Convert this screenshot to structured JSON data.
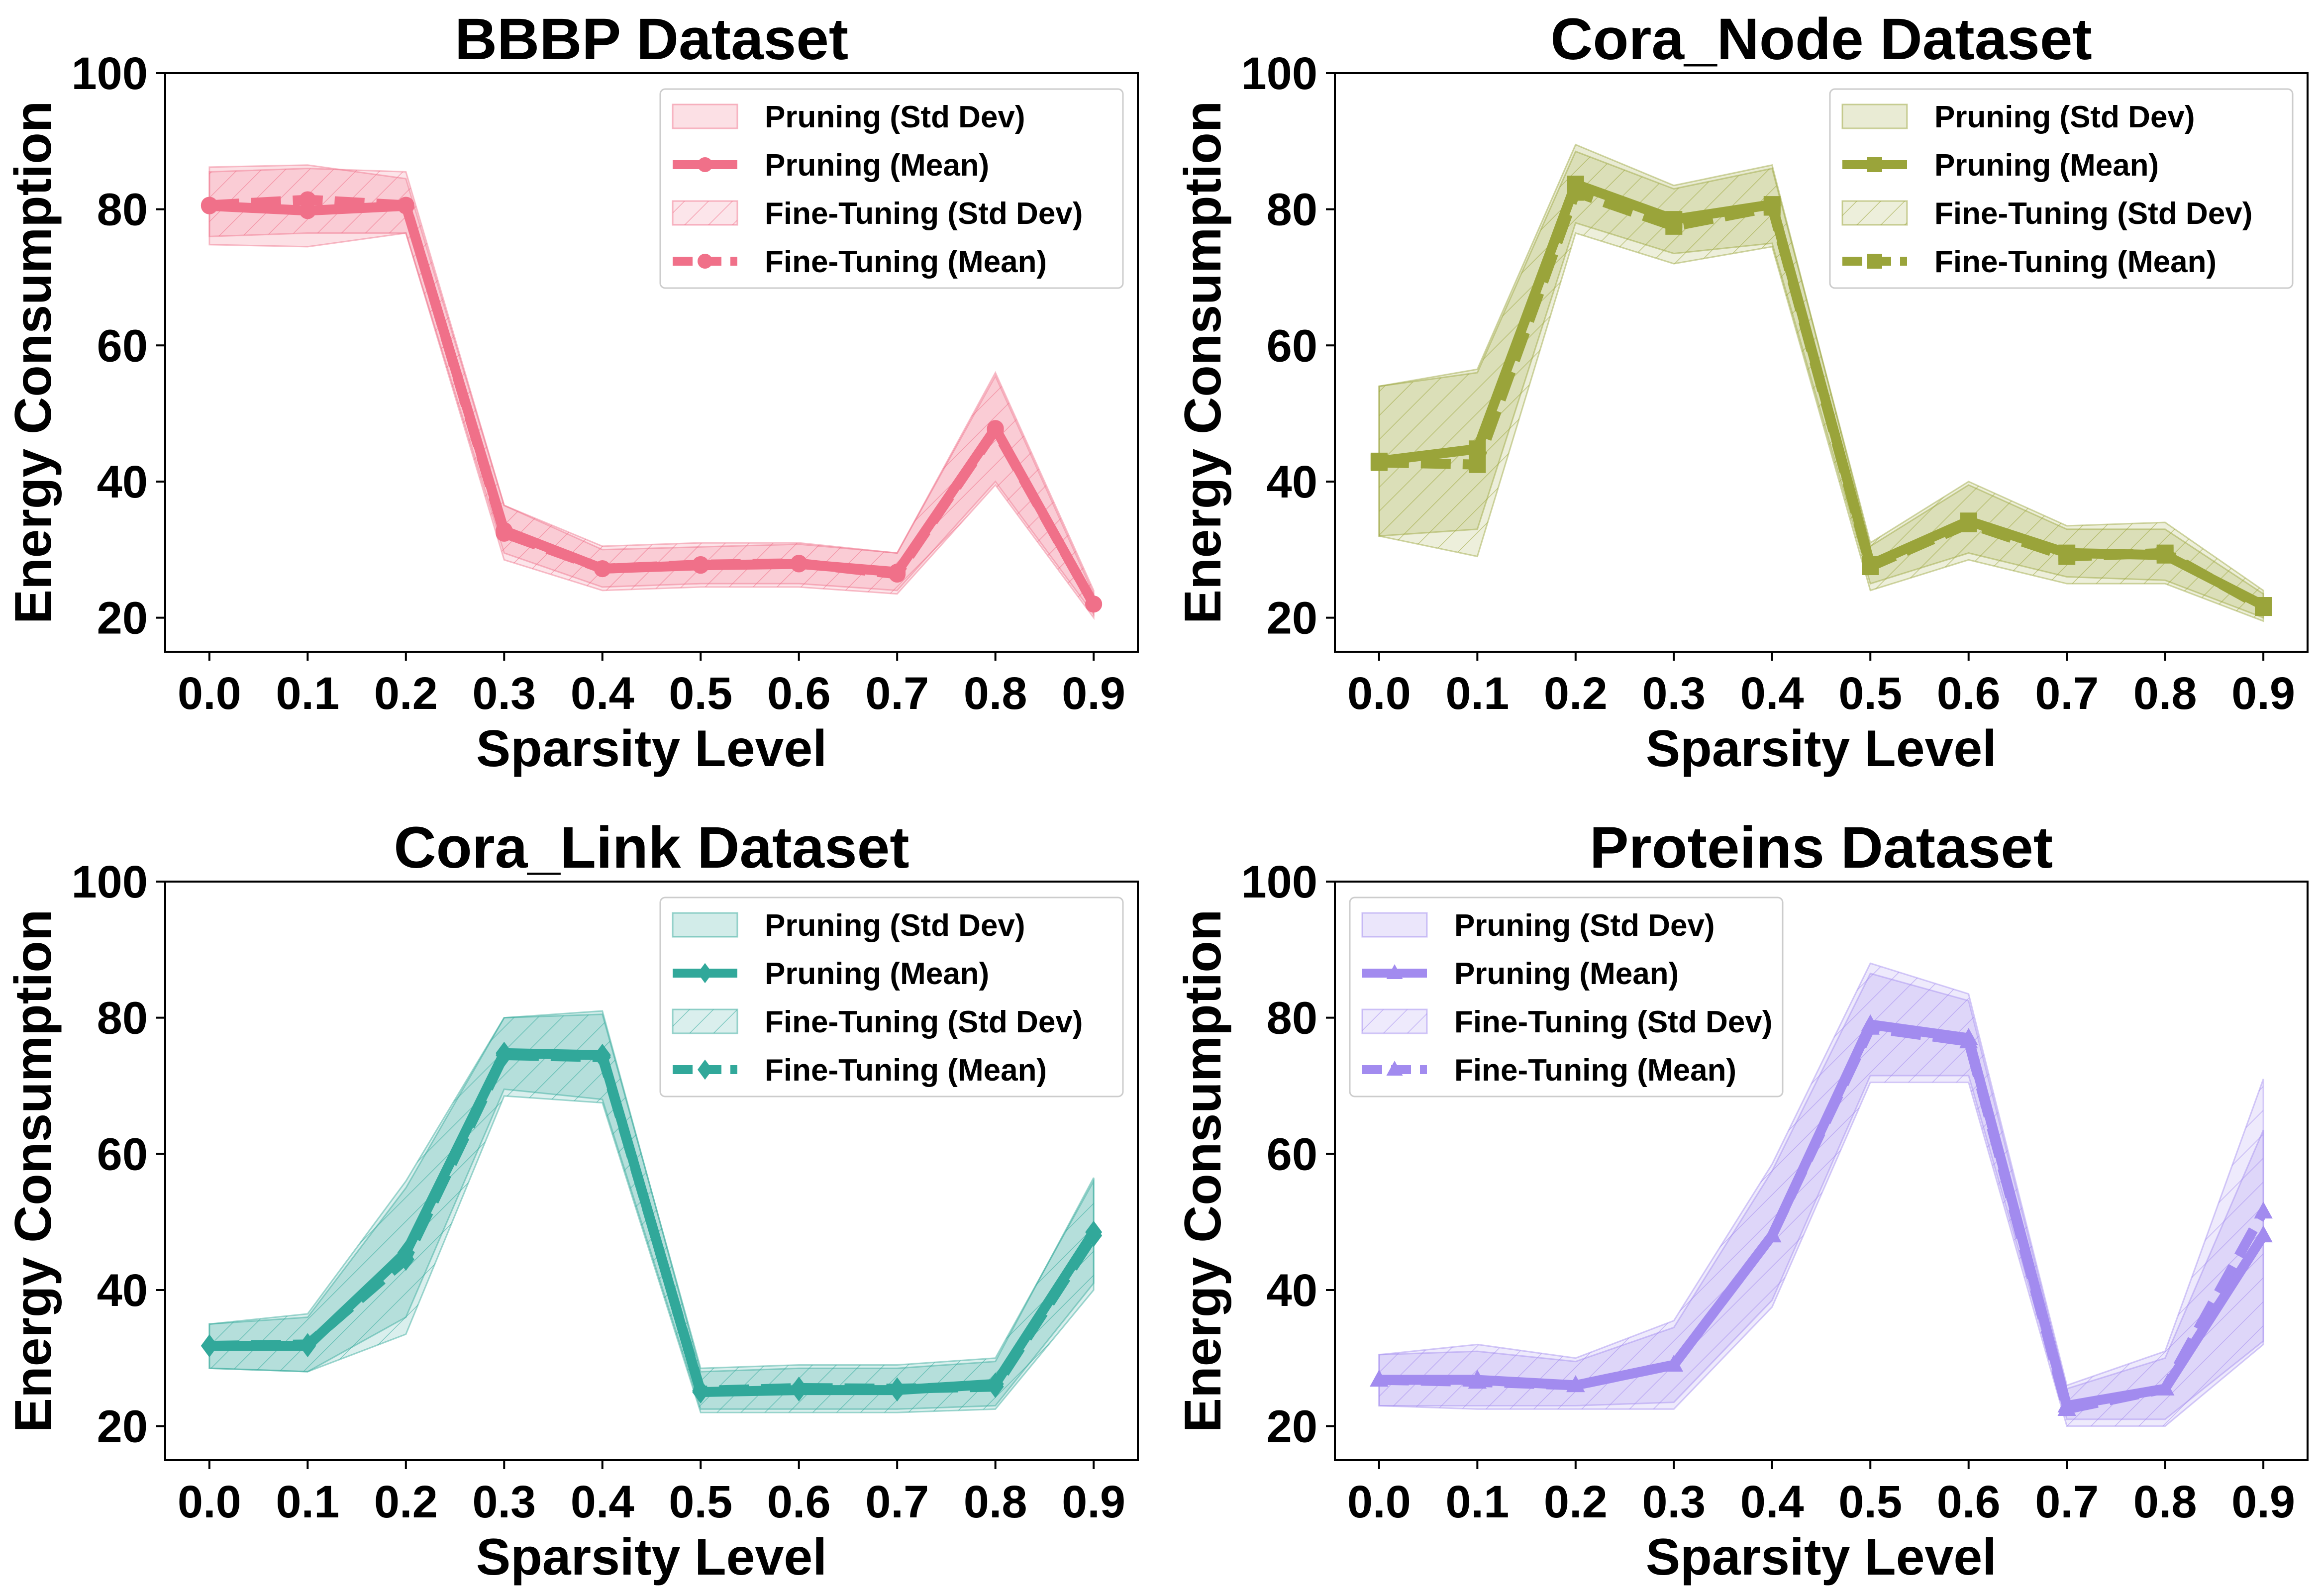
{
  "chart_data": [
    {
      "type": "line",
      "title": "BBBP Dataset",
      "xlabel": "Sparsity Level",
      "ylabel": "Energy Consumption",
      "x": [
        0.0,
        0.1,
        0.2,
        0.3,
        0.4,
        0.5,
        0.6,
        0.7,
        0.8,
        0.9
      ],
      "x_tick_labels": [
        "0.0",
        "0.1",
        "0.2",
        "0.3",
        "0.4",
        "0.5",
        "0.6",
        "0.7",
        "0.8",
        "0.9"
      ],
      "y_ticks": [
        20,
        40,
        60,
        80,
        100
      ],
      "y_tick_labels": [
        "20",
        "40",
        "60",
        "80",
        "100"
      ],
      "xlim": [
        -0.045,
        0.945
      ],
      "ylim": [
        15,
        100
      ],
      "marker": "circle",
      "color": "#F07089",
      "legend_position": "upper right",
      "legend_labels": [
        "Pruning (Std Dev)",
        "Pruning (Mean)",
        "Fine-Tuning (Std Dev)",
        "Fine-Tuning (Mean)"
      ],
      "series": [
        {
          "name": "Pruning (Mean)",
          "style": "solid",
          "values": [
            80.5,
            79.8,
            80.5,
            32.8,
            27.2,
            27.7,
            27.9,
            26.7,
            47.8,
            22.0
          ],
          "std_band": [
            [
              74.8,
              86.2
            ],
            [
              74.5,
              86.5
            ],
            [
              76.5,
              84.5
            ],
            [
              29.5,
              36.5
            ],
            [
              24.5,
              30.0
            ],
            [
              25.0,
              30.4
            ],
            [
              25.0,
              30.8
            ],
            [
              24.0,
              29.5
            ],
            [
              40.0,
              55.5
            ],
            [
              20.5,
              23.5
            ]
          ]
        },
        {
          "name": "Fine-Tuning (Mean)",
          "style": "dashed",
          "values": [
            80.6,
            81.4,
            80.6,
            32.4,
            27.2,
            27.8,
            28.0,
            26.4,
            47.6,
            22.0
          ],
          "std_band": [
            [
              76.0,
              85.5
            ],
            [
              76.5,
              86.0
            ],
            [
              76.5,
              85.5
            ],
            [
              28.5,
              36.5
            ],
            [
              24.0,
              30.5
            ],
            [
              24.5,
              31.0
            ],
            [
              24.5,
              31.0
            ],
            [
              23.5,
              29.5
            ],
            [
              39.5,
              56.0
            ],
            [
              20.0,
              24.0
            ]
          ]
        }
      ]
    },
    {
      "type": "line",
      "title": "Cora_Node Dataset",
      "xlabel": "Sparsity Level",
      "ylabel": "Energy Consumption",
      "x": [
        0.0,
        0.1,
        0.2,
        0.3,
        0.4,
        0.5,
        0.6,
        0.7,
        0.8,
        0.9
      ],
      "x_tick_labels": [
        "0.0",
        "0.1",
        "0.2",
        "0.3",
        "0.4",
        "0.5",
        "0.6",
        "0.7",
        "0.8",
        "0.9"
      ],
      "y_ticks": [
        20,
        40,
        60,
        80,
        100
      ],
      "y_tick_labels": [
        "20",
        "40",
        "60",
        "80",
        "100"
      ],
      "xlim": [
        -0.045,
        0.945
      ],
      "ylim": [
        15,
        100
      ],
      "marker": "square",
      "color": "#9AA43A",
      "legend_position": "upper right",
      "legend_labels": [
        "Pruning (Std Dev)",
        "Pruning (Mean)",
        "Fine-Tuning (Std Dev)",
        "Fine-Tuning (Mean)"
      ],
      "series": [
        {
          "name": "Pruning (Mean)",
          "style": "solid",
          "values": [
            43.0,
            44.8,
            83.7,
            78.5,
            80.7,
            27.8,
            34.2,
            29.5,
            29.2,
            21.8
          ],
          "std_band": [
            [
              32.0,
              54.0
            ],
            [
              33.0,
              56.5
            ],
            [
              78.0,
              89.5
            ],
            [
              73.5,
              83.5
            ],
            [
              75.0,
              86.5
            ],
            [
              25.0,
              30.5
            ],
            [
              29.5,
              39.5
            ],
            [
              26.0,
              33.0
            ],
            [
              25.5,
              33.0
            ],
            [
              20.0,
              23.5
            ]
          ]
        },
        {
          "name": "Fine-Tuning (Mean)",
          "style": "dashed",
          "values": [
            42.8,
            42.5,
            82.5,
            77.5,
            80.3,
            27.5,
            33.8,
            29.0,
            29.5,
            21.5
          ],
          "std_band": [
            [
              32.0,
              54.0
            ],
            [
              29.0,
              56.0
            ],
            [
              76.5,
              88.5
            ],
            [
              72.0,
              83.0
            ],
            [
              74.5,
              86.0
            ],
            [
              24.0,
              31.0
            ],
            [
              28.5,
              40.0
            ],
            [
              25.0,
              33.5
            ],
            [
              25.0,
              34.0
            ],
            [
              19.5,
              24.0
            ]
          ]
        }
      ]
    },
    {
      "type": "line",
      "title": "Cora_Link Dataset",
      "xlabel": "Sparsity Level",
      "ylabel": "Energy Consumption",
      "x": [
        0.0,
        0.1,
        0.2,
        0.3,
        0.4,
        0.5,
        0.6,
        0.7,
        0.8,
        0.9
      ],
      "x_tick_labels": [
        "0.0",
        "0.1",
        "0.2",
        "0.3",
        "0.4",
        "0.5",
        "0.6",
        "0.7",
        "0.8",
        "0.9"
      ],
      "y_ticks": [
        20,
        40,
        60,
        80,
        100
      ],
      "y_tick_labels": [
        "20",
        "40",
        "60",
        "80",
        "100"
      ],
      "xlim": [
        -0.045,
        0.945
      ],
      "ylim": [
        15,
        100
      ],
      "marker": "diamond",
      "color": "#31A89A",
      "legend_position": "upper right",
      "legend_labels": [
        "Pruning (Std Dev)",
        "Pruning (Mean)",
        "Fine-Tuning (Std Dev)",
        "Fine-Tuning (Mean)"
      ],
      "series": [
        {
          "name": "Pruning (Mean)",
          "style": "solid",
          "values": [
            31.8,
            31.8,
            45.5,
            74.8,
            74.5,
            25.0,
            25.3,
            25.3,
            26.2,
            48.5
          ],
          "std_band": [
            [
              28.5,
              35.0
            ],
            [
              28.0,
              36.0
            ],
            [
              36.0,
              55.0
            ],
            [
              69.5,
              80.0
            ],
            [
              68.0,
              81.0
            ],
            [
              22.5,
              28.0
            ],
            [
              22.5,
              28.5
            ],
            [
              22.5,
              28.5
            ],
            [
              23.0,
              29.5
            ],
            [
              41.0,
              56.5
            ]
          ]
        },
        {
          "name": "Fine-Tuning (Mean)",
          "style": "dashed",
          "values": [
            31.8,
            32.0,
            44.5,
            74.5,
            74.2,
            25.2,
            25.6,
            25.5,
            25.8,
            48.0
          ],
          "std_band": [
            [
              28.5,
              35.0
            ],
            [
              28.0,
              36.5
            ],
            [
              33.5,
              56.0
            ],
            [
              68.5,
              80.0
            ],
            [
              67.5,
              80.5
            ],
            [
              22.0,
              28.5
            ],
            [
              22.0,
              29.0
            ],
            [
              22.0,
              29.0
            ],
            [
              22.5,
              30.0
            ],
            [
              40.0,
              56.0
            ]
          ]
        }
      ]
    },
    {
      "type": "line",
      "title": "Proteins Dataset",
      "xlabel": "Sparsity Level",
      "ylabel": "Energy Consumption",
      "x": [
        0.0,
        0.1,
        0.2,
        0.3,
        0.4,
        0.5,
        0.6,
        0.7,
        0.8,
        0.9
      ],
      "x_tick_labels": [
        "0.0",
        "0.1",
        "0.2",
        "0.3",
        "0.4",
        "0.5",
        "0.6",
        "0.7",
        "0.8",
        "0.9"
      ],
      "y_ticks": [
        20,
        40,
        60,
        80,
        100
      ],
      "y_tick_labels": [
        "20",
        "40",
        "60",
        "80",
        "100"
      ],
      "xlim": [
        -0.045,
        0.945
      ],
      "ylim": [
        15,
        100
      ],
      "marker": "triangle",
      "color": "#A28BEF",
      "legend_position": "upper left",
      "legend_labels": [
        "Pruning (Std Dev)",
        "Pruning (Mean)",
        "Fine-Tuning (Std Dev)",
        "Fine-Tuning (Mean)"
      ],
      "series": [
        {
          "name": "Pruning (Mean)",
          "style": "solid",
          "values": [
            26.8,
            26.8,
            26.0,
            29.0,
            48.0,
            79.0,
            77.0,
            23.0,
            25.5,
            48.0
          ],
          "std_band": [
            [
              23.0,
              30.5
            ],
            [
              23.0,
              31.0
            ],
            [
              23.0,
              29.5
            ],
            [
              23.5,
              34.5
            ],
            [
              38.5,
              57.5
            ],
            [
              71.5,
              86.5
            ],
            [
              71.5,
              82.5
            ],
            [
              21.0,
              25.5
            ],
            [
              21.0,
              30.0
            ],
            [
              32.5,
              63.5
            ]
          ]
        },
        {
          "name": "Fine-Tuning (Mean)",
          "style": "dashed",
          "values": [
            26.8,
            26.5,
            26.0,
            29.0,
            48.0,
            78.5,
            76.5,
            22.5,
            25.5,
            51.5
          ],
          "std_band": [
            [
              23.0,
              30.5
            ],
            [
              22.5,
              32.0
            ],
            [
              22.5,
              30.0
            ],
            [
              22.5,
              35.5
            ],
            [
              37.5,
              58.5
            ],
            [
              70.5,
              88.0
            ],
            [
              70.5,
              83.5
            ],
            [
              20.0,
              26.0
            ],
            [
              20.0,
              31.0
            ],
            [
              32.0,
              71.0
            ]
          ]
        }
      ]
    }
  ]
}
